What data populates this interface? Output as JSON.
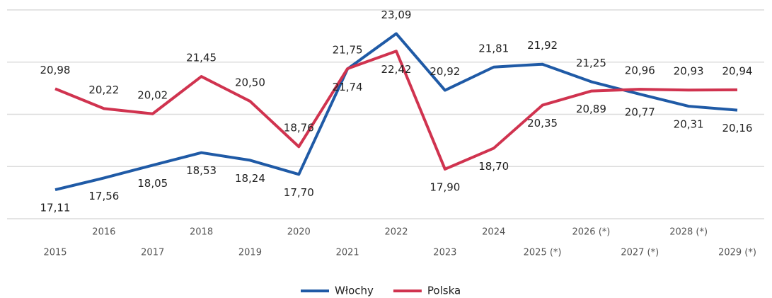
{
  "chart_data": {
    "type": "line",
    "categories": [
      "2015",
      "2016",
      "2017",
      "2018",
      "2019",
      "2020",
      "2021",
      "2022",
      "2023",
      "2024",
      "2025 (*)",
      "2026 (*)",
      "2027 (*)",
      "2028 (*)",
      "2029 (*)"
    ],
    "series": [
      {
        "name": "Włochy",
        "color": "#1f5aa6",
        "values": [
          17.11,
          17.56,
          18.05,
          18.53,
          18.24,
          17.7,
          21.74,
          23.09,
          20.92,
          21.81,
          21.92,
          21.25,
          20.77,
          20.31,
          20.16
        ],
        "value_labels": [
          "17,11",
          "17,56",
          "18,05",
          "18,53",
          "18,24",
          "17,70",
          "21,74",
          "23,09",
          "20,92",
          "21,81",
          "21,92",
          "21,25",
          "20,77",
          "20,31",
          "20,16"
        ]
      },
      {
        "name": "Polska",
        "color": "#d0334f",
        "values": [
          20.98,
          20.22,
          20.02,
          21.45,
          20.5,
          18.76,
          21.75,
          22.42,
          17.9,
          18.7,
          20.35,
          20.89,
          20.96,
          20.93,
          20.94
        ],
        "value_labels": [
          "20,98",
          "20,22",
          "20,02",
          "21,45",
          "20,50",
          "18,76",
          "21,75",
          "22,42",
          "17,90",
          "18,70",
          "20,35",
          "20,89",
          "20,96",
          "20,93",
          "20,94"
        ]
      }
    ],
    "ylim": [
      16,
      24
    ],
    "yticks": [
      16,
      18,
      20,
      22,
      24
    ],
    "grid": true
  }
}
